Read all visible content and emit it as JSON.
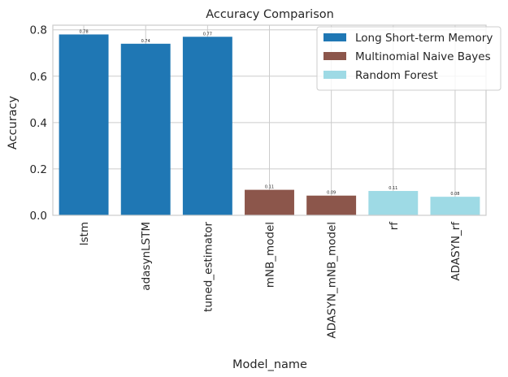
{
  "chart_data": {
    "type": "bar",
    "title": "Accuracy Comparison",
    "xlabel": "Model_name",
    "ylabel": "Accuracy",
    "ylim": [
      0,
      0.82
    ],
    "yticks": [
      0.0,
      0.2,
      0.4,
      0.6,
      0.8
    ],
    "ytick_labels": [
      "0.0",
      "0.2",
      "0.4",
      "0.6",
      "0.8"
    ],
    "grid": true,
    "legend_position": "top-right",
    "categories": [
      "lstm",
      "adasynLSTM",
      "tuned_estimator",
      "mNB_model",
      "ADASYN_mNB_model",
      "rf",
      "ADASYN_rf"
    ],
    "values": [
      0.78,
      0.74,
      0.77,
      0.11,
      0.085,
      0.105,
      0.08
    ],
    "value_labels": [
      "0.78",
      "0.74",
      "0.77",
      "0.11",
      "0.09",
      "0.11",
      "0.08"
    ],
    "groups": [
      "Long Short-term Memory",
      "Long Short-term Memory",
      "Long Short-term Memory",
      "Multinomial Naive Bayes",
      "Multinomial Naive Bayes",
      "Random Forest",
      "Random Forest"
    ],
    "legend": [
      {
        "name": "Long Short-term Memory",
        "color": "#1f77b4"
      },
      {
        "name": "Multinomial Naive Bayes",
        "color": "#8c564b"
      },
      {
        "name": "Random Forest",
        "color": "#9edae5"
      }
    ]
  }
}
